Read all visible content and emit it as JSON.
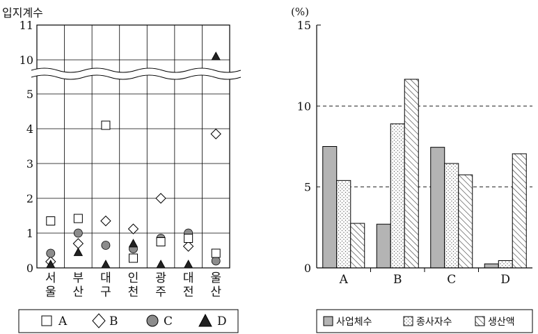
{
  "left_chart": {
    "title": "입지계수",
    "y_ticks": [
      "0",
      "1",
      "2",
      "3",
      "4",
      "5",
      "10",
      "11"
    ],
    "categories": [
      [
        "서",
        "울"
      ],
      [
        "부",
        "산"
      ],
      [
        "대",
        "구"
      ],
      [
        "인",
        "천"
      ],
      [
        "광",
        "주"
      ],
      [
        "대",
        "전"
      ],
      [
        "울",
        "산"
      ]
    ],
    "legend": [
      {
        "symbol": "square",
        "label": "A"
      },
      {
        "symbol": "diamond",
        "label": "B"
      },
      {
        "symbol": "circle",
        "label": "C"
      },
      {
        "symbol": "triangle",
        "label": "D"
      }
    ]
  },
  "right_chart": {
    "unit": "(%)",
    "y_ticks": [
      "0",
      "5",
      "10",
      "15"
    ],
    "categories": [
      "A",
      "B",
      "C",
      "D"
    ],
    "legend": [
      {
        "pattern": "gray",
        "label": "사업체수"
      },
      {
        "pattern": "dots",
        "label": "종사자수"
      },
      {
        "pattern": "hatch",
        "label": "생산액"
      }
    ]
  },
  "chart_data": [
    {
      "type": "scatter",
      "title": "",
      "ylabel": "입지계수",
      "categories": [
        "서울",
        "부산",
        "대구",
        "인천",
        "광주",
        "대전",
        "울산"
      ],
      "ylim": [
        0,
        11
      ],
      "axis_break": [
        5.4,
        9.6
      ],
      "series": [
        {
          "name": "A",
          "marker": "square",
          "values": [
            1.35,
            1.42,
            4.1,
            0.28,
            0.75,
            0.85,
            0.42
          ]
        },
        {
          "name": "B",
          "marker": "diamond",
          "values": [
            0.18,
            0.7,
            1.35,
            1.12,
            2.0,
            0.62,
            3.85
          ]
        },
        {
          "name": "C",
          "marker": "circle",
          "values": [
            0.42,
            1.0,
            0.65,
            0.55,
            0.85,
            1.0,
            0.2
          ]
        },
        {
          "name": "D",
          "marker": "triangle",
          "values": [
            0.1,
            0.45,
            0.1,
            0.7,
            0.1,
            0.1,
            10.1
          ]
        }
      ],
      "grid": true,
      "legend_position": "bottom"
    },
    {
      "type": "bar",
      "title": "",
      "ylabel": "(%)",
      "categories": [
        "A",
        "B",
        "C",
        "D"
      ],
      "ylim": [
        0,
        15
      ],
      "series": [
        {
          "name": "사업체수",
          "pattern": "gray",
          "values": [
            7.5,
            2.7,
            7.45,
            0.25
          ]
        },
        {
          "name": "종사자수",
          "pattern": "dots",
          "values": [
            5.4,
            8.9,
            6.45,
            0.45
          ]
        },
        {
          "name": "생산액",
          "pattern": "hatch",
          "values": [
            2.75,
            11.65,
            5.75,
            7.05
          ]
        }
      ],
      "gridlines": [
        5,
        10
      ],
      "legend_position": "bottom"
    }
  ]
}
